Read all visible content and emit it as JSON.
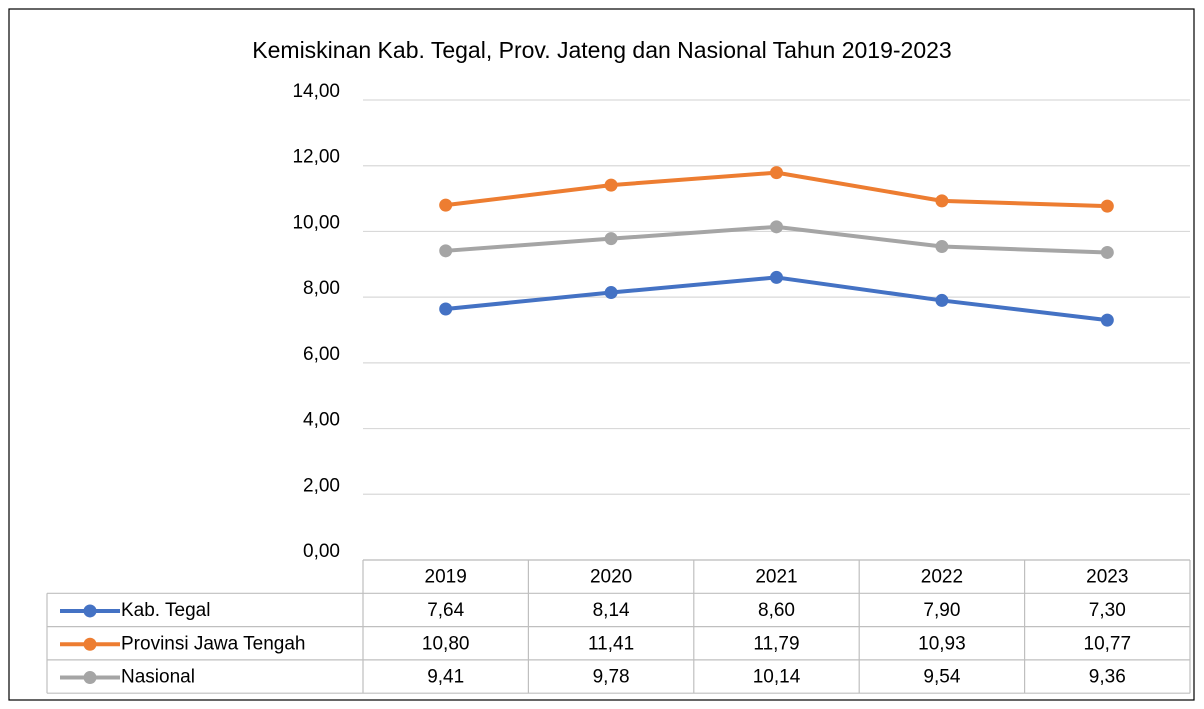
{
  "chart_data": {
    "type": "line",
    "title": "Kemiskinan Kab. Tegal, Prov. Jateng dan Nasional Tahun 2019-2023",
    "categories": [
      "2019",
      "2020",
      "2021",
      "2022",
      "2023"
    ],
    "series": [
      {
        "name": "Kab. Tegal",
        "color": "#4472c4",
        "values": [
          7.64,
          8.14,
          8.6,
          7.9,
          7.3
        ],
        "value_labels": [
          "7,64",
          "8,14",
          "8,60",
          "7,90",
          "7,30"
        ]
      },
      {
        "name": "Provinsi Jawa Tengah",
        "color": "#ed7d31",
        "values": [
          10.8,
          11.41,
          11.79,
          10.93,
          10.77
        ],
        "value_labels": [
          "10,80",
          "11,41",
          "11,79",
          "10,93",
          "10,77"
        ]
      },
      {
        "name": "Nasional",
        "color": "#a5a5a5",
        "values": [
          9.41,
          9.78,
          10.14,
          9.54,
          9.36
        ],
        "value_labels": [
          "9,41",
          "9,78",
          "10,14",
          "9,54",
          "9,36"
        ]
      }
    ],
    "ylim": [
      0,
      14
    ],
    "yticks": [
      {
        "value": 0,
        "label": "0,00"
      },
      {
        "value": 2,
        "label": "2,00"
      },
      {
        "value": 4,
        "label": "4,00"
      },
      {
        "value": 6,
        "label": "6,00"
      },
      {
        "value": 8,
        "label": "8,00"
      },
      {
        "value": 10,
        "label": "10,00"
      },
      {
        "value": 12,
        "label": "12,00"
      },
      {
        "value": 14,
        "label": "14,00"
      }
    ],
    "grid": true
  }
}
